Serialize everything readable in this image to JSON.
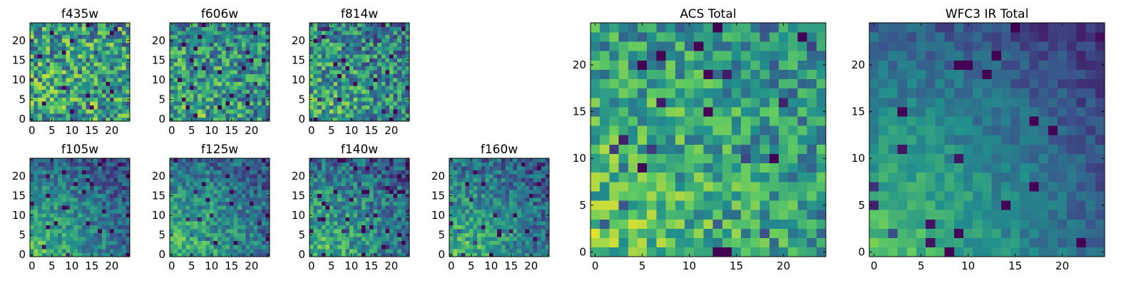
{
  "figure": {
    "colormap": [
      "#440154",
      "#3b528b",
      "#21908d",
      "#5dc963",
      "#fde725"
    ],
    "panels": [
      "f435w",
      "f606w",
      "f814w",
      "f105w",
      "f125w",
      "f140w",
      "f160w",
      "acs_total",
      "wfc3_ir_total"
    ]
  },
  "chart_data": [
    {
      "id": "f435w",
      "type": "heatmap",
      "title": "f435w",
      "grid_size": 25,
      "xlim": [
        -0.5,
        24.5
      ],
      "ylim": [
        -0.5,
        24.5
      ],
      "xticks": [
        0,
        5,
        10,
        15,
        20
      ],
      "yticks": [
        0,
        5,
        10,
        15,
        20
      ],
      "value_range": [
        0,
        1
      ],
      "pattern": {
        "base": 0.56,
        "noise": 0.34,
        "gradient": 0.05,
        "seed": 11
      }
    },
    {
      "id": "f606w",
      "type": "heatmap",
      "title": "f606w",
      "grid_size": 25,
      "xlim": [
        -0.5,
        24.5
      ],
      "ylim": [
        -0.5,
        24.5
      ],
      "xticks": [
        0,
        5,
        10,
        15,
        20
      ],
      "yticks": [
        0,
        5,
        10,
        15,
        20
      ],
      "value_range": [
        0,
        1
      ],
      "pattern": {
        "base": 0.52,
        "noise": 0.3,
        "gradient": 0.22,
        "seed": 23
      }
    },
    {
      "id": "f814w",
      "type": "heatmap",
      "title": "f814w",
      "grid_size": 25,
      "xlim": [
        -0.5,
        24.5
      ],
      "ylim": [
        -0.5,
        24.5
      ],
      "xticks": [
        0,
        5,
        10,
        15,
        20
      ],
      "yticks": [
        0,
        5,
        10,
        15,
        20
      ],
      "value_range": [
        0,
        1
      ],
      "pattern": {
        "base": 0.5,
        "noise": 0.3,
        "gradient": 0.26,
        "seed": 37
      }
    },
    {
      "id": "f105w",
      "type": "heatmap",
      "title": "f105w",
      "grid_size": 25,
      "xlim": [
        -0.5,
        24.5
      ],
      "ylim": [
        -0.5,
        24.5
      ],
      "xticks": [
        0,
        5,
        10,
        15,
        20
      ],
      "yticks": [
        0,
        5,
        10,
        15,
        20
      ],
      "value_range": [
        0,
        1
      ],
      "pattern": {
        "base": 0.42,
        "noise": 0.18,
        "gradient": 0.5,
        "seed": 41
      }
    },
    {
      "id": "f125w",
      "type": "heatmap",
      "title": "f125w",
      "grid_size": 25,
      "xlim": [
        -0.5,
        24.5
      ],
      "ylim": [
        -0.5,
        24.5
      ],
      "xticks": [
        0,
        5,
        10,
        15,
        20
      ],
      "yticks": [
        0,
        5,
        10,
        15,
        20
      ],
      "value_range": [
        0,
        1
      ],
      "pattern": {
        "base": 0.45,
        "noise": 0.2,
        "gradient": 0.45,
        "seed": 53
      }
    },
    {
      "id": "f140w",
      "type": "heatmap",
      "title": "f140w",
      "grid_size": 25,
      "xlim": [
        -0.5,
        24.5
      ],
      "ylim": [
        -0.5,
        24.5
      ],
      "xticks": [
        0,
        5,
        10,
        15,
        20
      ],
      "yticks": [
        0,
        5,
        10,
        15,
        20
      ],
      "value_range": [
        0,
        1
      ],
      "pattern": {
        "base": 0.44,
        "noise": 0.22,
        "gradient": 0.45,
        "seed": 67
      }
    },
    {
      "id": "f160w",
      "type": "heatmap",
      "title": "f160w",
      "grid_size": 25,
      "xlim": [
        -0.5,
        24.5
      ],
      "ylim": [
        -0.5,
        24.5
      ],
      "xticks": [
        0,
        5,
        10,
        15,
        20
      ],
      "yticks": [
        0,
        5,
        10,
        15,
        20
      ],
      "value_range": [
        0,
        1
      ],
      "pattern": {
        "base": 0.44,
        "noise": 0.2,
        "gradient": 0.48,
        "seed": 79
      }
    },
    {
      "id": "acs_total",
      "type": "heatmap",
      "title": "ACS Total",
      "grid_size": 25,
      "xlim": [
        -0.5,
        24.5
      ],
      "ylim": [
        -0.5,
        24.5
      ],
      "xticks": [
        0,
        5,
        10,
        15,
        20
      ],
      "yticks": [
        0,
        5,
        10,
        15,
        20
      ],
      "value_range": [
        0,
        1
      ],
      "pattern": {
        "base": 0.58,
        "noise": 0.24,
        "gradient": 0.28,
        "seed": 97
      }
    },
    {
      "id": "wfc3_ir_total",
      "type": "heatmap",
      "title": "WFC3 IR Total",
      "grid_size": 25,
      "xlim": [
        -0.5,
        24.5
      ],
      "ylim": [
        -0.5,
        24.5
      ],
      "xticks": [
        0,
        5,
        10,
        15,
        20
      ],
      "yticks": [
        0,
        5,
        10,
        15,
        20
      ],
      "value_range": [
        0,
        1
      ],
      "pattern": {
        "base": 0.4,
        "noise": 0.1,
        "gradient": 0.62,
        "seed": 113
      }
    }
  ]
}
